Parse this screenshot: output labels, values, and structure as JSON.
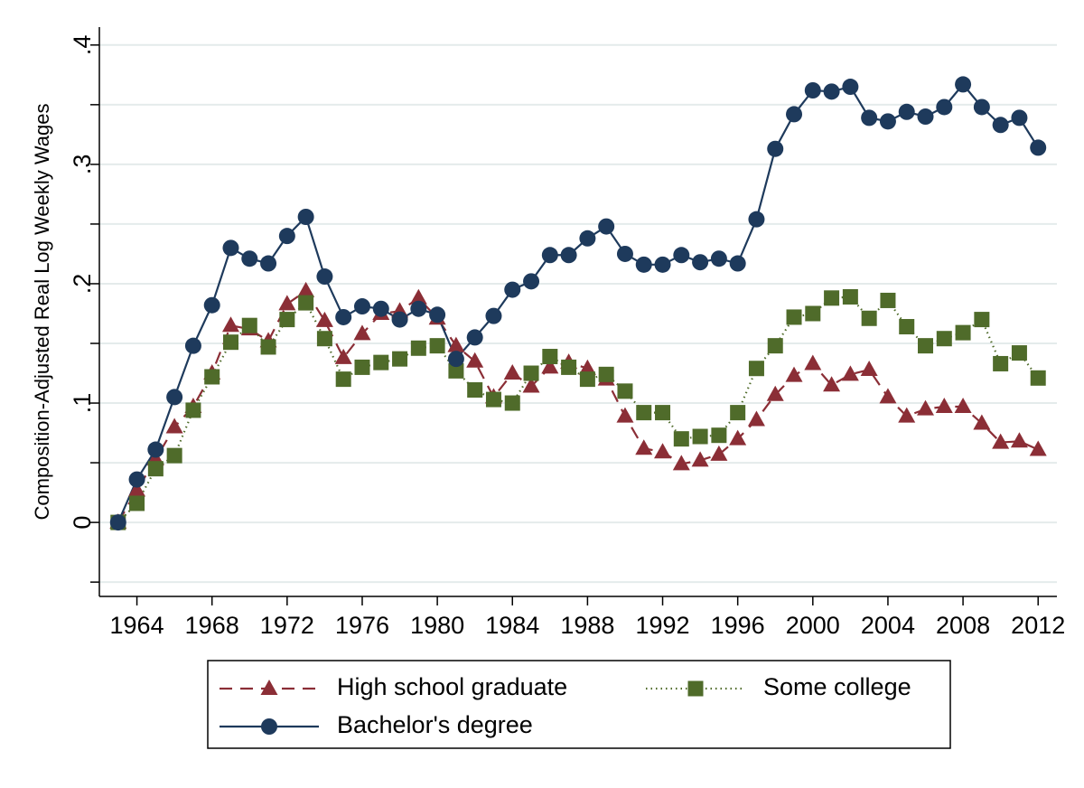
{
  "chart_data": {
    "type": "line",
    "ylabel": "Composition-Adjusted Real Log Weekly Wages",
    "x": [
      1963,
      1964,
      1965,
      1966,
      1967,
      1968,
      1969,
      1970,
      1971,
      1972,
      1973,
      1974,
      1975,
      1976,
      1977,
      1978,
      1979,
      1980,
      1981,
      1982,
      1983,
      1984,
      1985,
      1986,
      1987,
      1988,
      1989,
      1990,
      1991,
      1992,
      1993,
      1994,
      1995,
      1996,
      1997,
      1998,
      1999,
      2000,
      2001,
      2002,
      2003,
      2004,
      2005,
      2006,
      2007,
      2008,
      2009,
      2010,
      2011,
      2012
    ],
    "series": [
      {
        "name": "High school graduate",
        "color": "#8b2e36",
        "line_style": "dashed",
        "marker": "triangle",
        "values": [
          0,
          0.027,
          0.053,
          0.08,
          0.097,
          0.125,
          0.165,
          0.162,
          0.152,
          0.183,
          0.194,
          0.169,
          0.138,
          0.158,
          0.175,
          0.177,
          0.188,
          0.171,
          0.148,
          0.135,
          0.105,
          0.125,
          0.114,
          0.13,
          0.134,
          0.129,
          0.12,
          0.089,
          0.062,
          0.059,
          0.049,
          0.052,
          0.057,
          0.07,
          0.086,
          0.107,
          0.123,
          0.133,
          0.115,
          0.124,
          0.128,
          0.105,
          0.089,
          0.095,
          0.097,
          0.097,
          0.083,
          0.067,
          0.068,
          0.061
        ]
      },
      {
        "name": "Some college",
        "color": "#4f6b2a",
        "line_style": "dotted",
        "marker": "square",
        "values": [
          0,
          0.016,
          0.045,
          0.056,
          0.094,
          0.122,
          0.151,
          0.165,
          0.147,
          0.17,
          0.184,
          0.154,
          0.12,
          0.13,
          0.134,
          0.137,
          0.146,
          0.148,
          0.127,
          0.111,
          0.103,
          0.1,
          0.125,
          0.139,
          0.13,
          0.12,
          0.124,
          0.11,
          0.092,
          0.092,
          0.07,
          0.072,
          0.073,
          0.092,
          0.129,
          0.148,
          0.172,
          0.175,
          0.188,
          0.189,
          0.171,
          0.186,
          0.164,
          0.148,
          0.154,
          0.159,
          0.17,
          0.133,
          0.142,
          0.121
        ]
      },
      {
        "name": "Bachelor's degree",
        "color": "#1e3a5c",
        "line_style": "solid",
        "marker": "circle",
        "values": [
          0,
          0.036,
          0.061,
          0.105,
          0.148,
          0.182,
          0.23,
          0.221,
          0.217,
          0.24,
          0.256,
          0.206,
          0.172,
          0.181,
          0.179,
          0.17,
          0.179,
          0.174,
          0.137,
          0.155,
          0.173,
          0.195,
          0.202,
          0.224,
          0.224,
          0.238,
          0.248,
          0.225,
          0.216,
          0.216,
          0.224,
          0.218,
          0.221,
          0.217,
          0.254,
          0.313,
          0.342,
          0.362,
          0.361,
          0.365,
          0.339,
          0.336,
          0.344,
          0.34,
          0.348,
          0.367,
          0.348,
          0.333,
          0.339,
          0.314
        ]
      }
    ],
    "xlim": [
      1962,
      2013
    ],
    "xticks": [
      1964,
      1968,
      1972,
      1976,
      1980,
      1984,
      1988,
      1992,
      1996,
      2000,
      2004,
      2008,
      2012
    ],
    "ylim": [
      -0.062,
      0.415
    ],
    "yticks": [
      {
        "value": 0,
        "label": "0"
      },
      {
        "value": 0.1,
        "label": ".1"
      },
      {
        "value": 0.2,
        "label": ".2"
      },
      {
        "value": 0.3,
        "label": ".3"
      },
      {
        "value": 0.4,
        "label": ".4"
      }
    ],
    "yminor": [
      -0.05,
      0.05,
      0.15,
      0.25,
      0.35
    ],
    "grid": true
  }
}
